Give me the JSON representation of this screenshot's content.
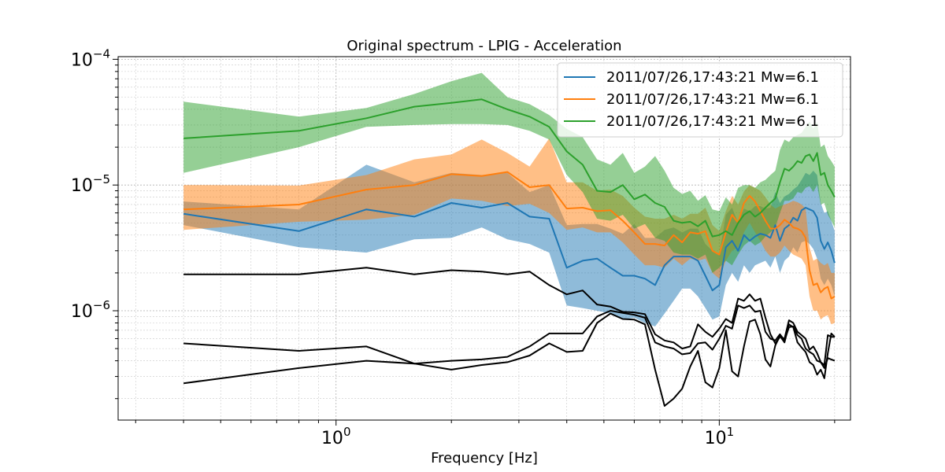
{
  "chart_data": {
    "type": "line",
    "title": "Original spectrum - LPIG - Acceleration",
    "xlabel": "Frequency [Hz]",
    "ylabel": "",
    "xscale": "log",
    "yscale": "log",
    "xlim": [
      0.27,
      22
    ],
    "ylim": [
      1.35e-07,
      0.000105
    ],
    "x_ticks": [
      {
        "value": 1,
        "base": "10",
        "exp": "0"
      },
      {
        "value": 10,
        "base": "10",
        "exp": "1"
      }
    ],
    "y_ticks": [
      {
        "value": 1e-06,
        "base": "10",
        "exp": "−6"
      },
      {
        "value": 1e-05,
        "base": "10",
        "exp": "−5"
      },
      {
        "value": 0.0001,
        "base": "10",
        "exp": "−4"
      }
    ],
    "grid": true,
    "legend_position": "top-right",
    "series": [
      {
        "name": "2011/07/26,17:43:21 Mw=6.1",
        "color": "#1f77b4",
        "x": [
          0.4,
          0.8,
          1.2,
          1.6,
          2.0,
          2.4,
          2.8,
          3.2,
          3.6,
          4.0,
          4.4,
          4.8,
          5.2,
          5.6,
          6.0,
          6.4,
          6.8,
          7.2,
          7.6,
          8.0,
          8.4,
          8.8,
          9.2,
          9.6,
          10.0,
          10.4,
          10.8,
          11.2,
          11.6,
          12.0,
          12.4,
          12.8,
          13.2,
          13.6,
          14.0,
          14.4,
          14.8,
          15.2,
          15.6,
          16.0,
          16.4,
          16.8,
          17.2,
          17.6,
          18.0,
          18.4,
          18.8,
          19.2,
          19.6,
          20.0
        ],
        "values": [
          5.9e-06,
          4.3e-06,
          6.4e-06,
          5.6e-06,
          7.2e-06,
          6.6e-06,
          7.2e-06,
          5.6e-06,
          5.4e-06,
          2.2e-06,
          2.5e-06,
          2.6e-06,
          2.2e-06,
          1.9e-06,
          1.9e-06,
          1.8e-06,
          1.6e-06,
          2.3e-06,
          2.7e-06,
          2.7e-06,
          2.7e-06,
          2.5e-06,
          1.9e-06,
          1.45e-06,
          1.6e-06,
          3.2e-06,
          3.6e-06,
          3e-06,
          4e-06,
          3.6e-06,
          3.9e-06,
          4.1e-06,
          4e-06,
          3.8e-06,
          4.8e-06,
          3.6e-06,
          4.5e-06,
          4.8e-06,
          5.5e-06,
          5.2e-06,
          6.3e-06,
          6.6e-06,
          6.4e-06,
          6.2e-06,
          5.5e-06,
          3.6e-06,
          3.1e-06,
          3.5e-06,
          3e-06,
          2.4e-06
        ],
        "band_upper": [
          7.4e-06,
          6.4e-06,
          1.45e-05,
          1.05e-05,
          1.25e-05,
          1.2e-05,
          1.25e-05,
          8.8e-06,
          1e-05,
          4.8e-06,
          4.9e-06,
          4.9e-06,
          4.5e-06,
          4.1e-06,
          4.9e-06,
          3.8e-06,
          3.8e-06,
          4.4e-06,
          4.6e-06,
          4.2e-06,
          4.5e-06,
          4.5e-06,
          3.4e-06,
          3e-06,
          2.8e-06,
          5.8e-06,
          6.6e-06,
          5e-06,
          6.5e-06,
          6.2e-06,
          6.8e-06,
          6.8e-06,
          6.5e-06,
          6.6e-06,
          8.8e-06,
          7.2e-06,
          8.1e-06,
          8.5e-06,
          9.2e-06,
          9.8e-06,
          1.1e-05,
          1.25e-05,
          1.2e-05,
          1.3e-05,
          1.2e-05,
          7.2e-06,
          6e-06,
          6.2e-06,
          5.2e-06,
          4.3e-06
        ],
        "band_lower": [
          4.8e-06,
          3.2e-06,
          2.9e-06,
          3.7e-06,
          3.8e-06,
          4.6e-06,
          3.7e-06,
          3.4e-06,
          2.9e-06,
          1.1e-06,
          1.05e-06,
          1e-06,
          9.5e-07,
          8.5e-07,
          8.8e-07,
          8e-07,
          7.5e-07,
          9.5e-07,
          1.2e-06,
          1.5e-06,
          1.5e-06,
          1.3e-06,
          1.05e-06,
          8.5e-07,
          9e-07,
          1.6e-06,
          2e-06,
          1.7e-06,
          2.3e-06,
          2e-06,
          2.3e-06,
          2.4e-06,
          2.5e-06,
          2.2e-06,
          2.7e-06,
          2e-06,
          2.5e-06,
          2.7e-06,
          3.2e-06,
          2.9e-06,
          3.5e-06,
          3.6e-06,
          3.4e-06,
          3.1e-06,
          2.6e-06,
          1.8e-06,
          1.6e-06,
          1.8e-06,
          1.6e-06,
          1.3e-06
        ]
      },
      {
        "name": "2011/07/26,17:43:21 Mw=6.1",
        "color": "#ff7f0e",
        "x": [
          0.4,
          0.8,
          1.2,
          1.6,
          2.0,
          2.4,
          2.8,
          3.2,
          3.6,
          4.0,
          4.4,
          4.8,
          5.2,
          5.6,
          6.0,
          6.4,
          6.8,
          7.2,
          7.6,
          8.0,
          8.4,
          8.8,
          9.2,
          9.6,
          10.0,
          10.4,
          10.8,
          11.2,
          11.6,
          12.0,
          12.4,
          12.8,
          13.2,
          13.6,
          14.0,
          14.4,
          14.8,
          15.2,
          15.6,
          16.0,
          16.4,
          16.8,
          17.2,
          17.6,
          18.0,
          18.4,
          18.8,
          19.2,
          19.6,
          20.0
        ],
        "values": [
          6.4e-06,
          7e-06,
          9.2e-06,
          1e-05,
          1.22e-05,
          1.18e-05,
          1.27e-05,
          9.6e-06,
          1e-05,
          6.5e-06,
          6.6e-06,
          6.2e-06,
          6.3e-06,
          5.2e-06,
          4.2e-06,
          3.4e-06,
          3.4e-06,
          3.3e-06,
          4e-06,
          3.5e-06,
          4.2e-06,
          4.1e-06,
          4.3e-06,
          3e-06,
          2.8e-06,
          4.2e-06,
          5.8e-06,
          5e-06,
          7.2e-06,
          8.2e-06,
          7.4e-06,
          6.2e-06,
          5.2e-06,
          4.5e-06,
          4.5e-06,
          4.8e-06,
          5.3e-06,
          5e-06,
          4.6e-06,
          4.5e-06,
          4.3e-06,
          3.8e-06,
          2.1e-06,
          1.6e-06,
          1.65e-06,
          1.4e-06,
          1.5e-06,
          1.55e-06,
          1.25e-06,
          1.3e-06
        ],
        "band_upper": [
          1e-05,
          9.9e-06,
          1.2e-05,
          1.6e-05,
          1.75e-05,
          2.3e-05,
          1.8e-05,
          1.4e-05,
          2.35e-05,
          1.05e-05,
          1.05e-05,
          9e-06,
          9.2e-06,
          8.2e-06,
          6.6e-06,
          5.6e-06,
          5.4e-06,
          5.4e-06,
          5.8e-06,
          5.4e-06,
          5.9e-06,
          5.9e-06,
          6.6e-06,
          4.8e-06,
          4.3e-06,
          6.2e-06,
          8.2e-06,
          7e-06,
          8.9e-06,
          1e-05,
          9.5e-06,
          9e-06,
          8e-06,
          7e-06,
          6.5e-06,
          6.8e-06,
          7e-06,
          7.2e-06,
          7.5e-06,
          7.3e-06,
          7e-06,
          6.5e-06,
          3.2e-06,
          2.5e-06,
          2.6e-06,
          2.4e-06,
          2.3e-06,
          2.4e-06,
          2e-06,
          2e-06
        ],
        "band_lower": [
          4.4e-06,
          5.1e-06,
          5.3e-06,
          5.8e-06,
          7.8e-06,
          7.5e-06,
          6.8e-06,
          7.1e-06,
          6e-06,
          4.4e-06,
          4.6e-06,
          4.2e-06,
          4.2e-06,
          3.5e-06,
          2.8e-06,
          2.3e-06,
          2.3e-06,
          2.2e-06,
          2.6e-06,
          2.3e-06,
          2.6e-06,
          2.5e-06,
          2.6e-06,
          2e-06,
          1.8e-06,
          2.5e-06,
          3e-06,
          3.2e-06,
          4.2e-06,
          5e-06,
          4.2e-06,
          3.6e-06,
          3e-06,
          2.7e-06,
          2.7e-06,
          2.9e-06,
          3.3e-06,
          3e-06,
          2.8e-06,
          2.7e-06,
          2.6e-06,
          2.3e-06,
          1.3e-06,
          1e-06,
          1e-06,
          8.5e-07,
          9e-07,
          9.2e-07,
          7.8e-07,
          8e-07
        ]
      },
      {
        "name": "2011/07/26,17:43:21 Mw=6.1",
        "color": "#2ca02c",
        "x": [
          0.4,
          0.8,
          1.2,
          1.6,
          2.0,
          2.4,
          2.8,
          3.2,
          3.6,
          4.0,
          4.4,
          4.8,
          5.2,
          5.6,
          6.0,
          6.4,
          6.8,
          7.2,
          7.6,
          8.0,
          8.4,
          8.8,
          9.2,
          9.6,
          10.0,
          10.4,
          10.8,
          11.2,
          11.6,
          12.0,
          12.4,
          12.8,
          13.2,
          13.6,
          14.0,
          14.4,
          14.8,
          15.2,
          15.6,
          16.0,
          16.4,
          16.8,
          17.2,
          17.6,
          18.0,
          18.4,
          18.8,
          19.2,
          19.6,
          20.0
        ],
        "values": [
          2.35e-05,
          2.7e-05,
          3.4e-05,
          4.2e-05,
          4.5e-05,
          4.8e-05,
          4e-05,
          3.5e-05,
          2.9e-05,
          1.85e-05,
          1.45e-05,
          9e-06,
          8.8e-06,
          1e-05,
          7.7e-06,
          8.4e-06,
          7.2e-06,
          6.7e-06,
          5.2e-06,
          5e-06,
          5.1e-06,
          4.7e-06,
          5.2e-06,
          3.9e-06,
          4e-06,
          4.3e-06,
          4e-06,
          5e-06,
          5.8e-06,
          6.2e-06,
          5.6e-06,
          6e-06,
          6.6e-06,
          7.2e-06,
          7.8e-06,
          1.05e-05,
          1.35e-05,
          1.3e-05,
          1.4e-05,
          1.55e-05,
          1.5e-05,
          1.7e-05,
          1.75e-05,
          1.55e-05,
          1.8e-05,
          1.2e-05,
          1.25e-05,
          1e-05,
          9e-06,
          8e-06
        ],
        "band_upper": [
          4.6e-05,
          3.5e-05,
          4.1e-05,
          5.3e-05,
          6.7e-05,
          7.8e-05,
          5e-05,
          4.4e-05,
          3.6e-05,
          2.8e-05,
          2.4e-05,
          1.6e-05,
          1.45e-05,
          1.8e-05,
          1.25e-05,
          1.4e-05,
          1.7e-05,
          1.3e-05,
          9.5e-06,
          8.5e-06,
          9e-06,
          7.5e-06,
          8.3e-06,
          6.4e-06,
          6.2e-06,
          8e-06,
          7e-06,
          9.5e-06,
          1e-05,
          1e-05,
          9.5e-06,
          1.05e-05,
          1.1e-05,
          1.2e-05,
          1.3e-05,
          1.9e-05,
          2.3e-05,
          2.2e-05,
          2.4e-05,
          2.5e-05,
          2.6e-05,
          2.9e-05,
          3.2e-05,
          2.8e-05,
          3.2e-05,
          2e-05,
          2.1e-05,
          1.7e-05,
          1.55e-05,
          1.4e-05
        ],
        "band_lower": [
          1.25e-05,
          2e-05,
          2.9e-05,
          3e-05,
          3.05e-05,
          3.05e-05,
          3e-05,
          2.7e-05,
          2.3e-05,
          1.2e-05,
          8.8e-06,
          5.4e-06,
          5.2e-06,
          5.8e-06,
          4.5e-06,
          4.9e-06,
          3.8e-06,
          3.6e-06,
          2.9e-06,
          2.8e-06,
          2.8e-06,
          2.6e-06,
          2.8e-06,
          2e-06,
          2.2e-06,
          2.5e-06,
          2.3e-06,
          2.8e-06,
          3.3e-06,
          3.6e-06,
          3.3e-06,
          3.5e-06,
          3.9e-06,
          4.2e-06,
          4.6e-06,
          6e-06,
          7.5e-06,
          7.5e-06,
          7.8e-06,
          8.8e-06,
          8.6e-06,
          9.5e-06,
          9.8e-06,
          8.8e-06,
          1e-05,
          7e-06,
          7.2e-06,
          5.8e-06,
          5.2e-06,
          4.6e-06
        ]
      },
      {
        "name": "",
        "color": "#000000",
        "x": [
          0.4,
          0.8,
          1.2,
          1.6,
          2.0,
          2.4,
          2.8,
          3.2,
          3.6,
          4.0,
          4.4,
          4.8,
          5.2,
          5.6,
          6.0,
          6.4,
          6.8,
          7.2,
          7.6,
          8.0,
          8.4,
          8.8,
          9.2,
          9.6,
          10.0,
          10.4,
          10.8,
          11.2,
          11.6,
          12.0,
          12.4,
          12.8,
          13.2,
          13.6,
          14.0,
          14.4,
          14.8,
          15.2,
          15.6,
          16.0,
          16.4,
          16.8,
          17.2,
          17.6,
          18.0,
          18.4,
          18.8,
          19.2,
          19.6,
          20.0
        ],
        "values": [
          1.95e-06,
          1.95e-06,
          2.2e-06,
          1.95e-06,
          2.1e-06,
          2.05e-06,
          1.95e-06,
          2.05e-06,
          1.6e-06,
          1.35e-06,
          1.45e-06,
          1.12e-06,
          1.08e-06,
          9.8e-07,
          9.7e-07,
          9.4e-07,
          6.5e-07,
          5.8e-07,
          5.6e-07,
          5e-07,
          5.2e-07,
          7.8e-07,
          6.8e-07,
          6.2e-07,
          7.2e-07,
          8.6e-07,
          8e-07,
          1.25e-06,
          1.2e-06,
          1.35e-06,
          1.2e-06,
          1.25e-06,
          8.8e-07,
          6.5e-07,
          5.5e-07,
          6.2e-07,
          6e-07,
          8.4e-07,
          8e-07,
          6.8e-07,
          6.4e-07,
          6e-07,
          4.9e-07,
          5.2e-07,
          4.6e-07,
          3.9e-07,
          3.7e-07,
          6.4e-07,
          6.2e-07,
          6.2e-07
        ]
      },
      {
        "name": "",
        "color": "#000000",
        "x": [
          0.4,
          0.8,
          1.2,
          1.6,
          2.0,
          2.4,
          2.8,
          3.2,
          3.6,
          4.0,
          4.4,
          4.8,
          5.2,
          5.6,
          6.0,
          6.4,
          6.8,
          7.2,
          7.6,
          8.0,
          8.4,
          8.8,
          9.2,
          9.6,
          10.0,
          10.4,
          10.8,
          11.2,
          11.6,
          12.0,
          12.4,
          12.8,
          13.2,
          13.6,
          14.0,
          14.4,
          14.8,
          15.2,
          15.6,
          16.0,
          16.4,
          16.8,
          17.2,
          17.6,
          18.0,
          18.4,
          18.8,
          19.2,
          19.6,
          20.0
        ],
        "values": [
          5.5e-07,
          4.8e-07,
          5.2e-07,
          3.8e-07,
          4e-07,
          4.1e-07,
          4.3e-07,
          5.2e-07,
          6.6e-07,
          6.6e-07,
          6.6e-07,
          9e-07,
          1e-06,
          9.6e-07,
          9.3e-07,
          8.8e-07,
          5.6e-07,
          5.2e-07,
          5e-07,
          4.5e-07,
          4.6e-07,
          5.5e-07,
          5.6e-07,
          4.9e-07,
          6e-07,
          7.6e-07,
          7.2e-07,
          1.1e-06,
          1.05e-06,
          1.1e-06,
          9.8e-07,
          1e-06,
          6.8e-07,
          6e-07,
          5.8e-07,
          6.5e-07,
          5.8e-07,
          7.4e-07,
          7.5e-07,
          6.4e-07,
          6e-07,
          5e-07,
          4.7e-07,
          4.5e-07,
          4e-07,
          3.9e-07,
          3.5e-07,
          4.2e-07,
          4.1e-07,
          4e-07
        ]
      },
      {
        "name": "",
        "color": "#000000",
        "x": [
          0.4,
          0.8,
          1.2,
          1.6,
          2.0,
          2.4,
          2.8,
          3.2,
          3.6,
          4.0,
          4.4,
          4.8,
          5.2,
          5.6,
          6.0,
          6.4,
          6.8,
          7.2,
          7.6,
          8.0,
          8.4,
          8.8,
          9.2,
          9.6,
          10.0,
          10.4,
          10.8,
          11.2,
          11.6,
          12.0,
          12.4,
          12.8,
          13.2,
          13.6,
          14.0,
          14.4,
          14.8,
          15.2,
          15.6,
          16.0,
          16.4,
          16.8,
          17.2,
          17.6,
          18.0,
          18.4,
          18.8,
          19.2,
          19.6,
          20.0
        ],
        "values": [
          2.65e-07,
          3.5e-07,
          4e-07,
          3.8e-07,
          3.4e-07,
          3.7e-07,
          3.9e-07,
          4.4e-07,
          5.5e-07,
          4.7e-07,
          4.8e-07,
          8e-07,
          9.5e-07,
          8.6e-07,
          8.5e-07,
          7.8e-07,
          3.4e-07,
          1.75e-07,
          2e-07,
          2.4e-07,
          3.6e-07,
          4.8e-07,
          2.7e-07,
          2.45e-07,
          3.5e-07,
          7e-07,
          3.3e-07,
          3e-07,
          5.2e-07,
          8.2e-07,
          8.5e-07,
          6.5e-07,
          4.1e-07,
          3.6e-07,
          5.3e-07,
          6.3e-07,
          5.6e-07,
          7.8e-07,
          7.4e-07,
          5.6e-07,
          5.1e-07,
          4.7e-07,
          3.9e-07,
          3.7e-07,
          3.1e-07,
          3.4e-07,
          2.9e-07,
          4.6e-07,
          6.6e-07,
          6.2e-07
        ]
      }
    ]
  }
}
